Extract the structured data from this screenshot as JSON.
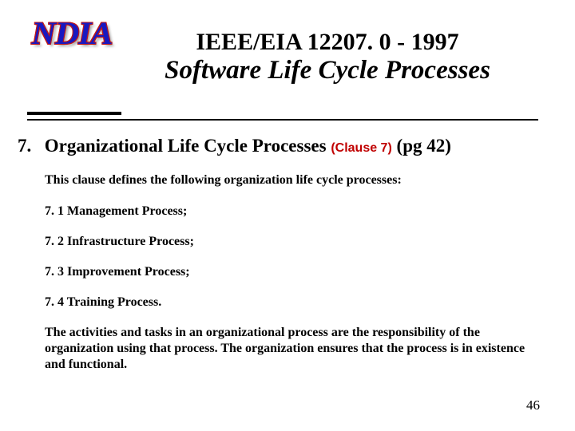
{
  "logo": {
    "text": "NDIA"
  },
  "title": {
    "line1": "IEEE/EIA 12207. 0 - 1997",
    "line2": "Software Life Cycle Processes"
  },
  "section": {
    "number": "7.",
    "heading": "Organizational Life Cycle Processes",
    "clause": "(Clause 7)",
    "pageref": "(pg 42)"
  },
  "body": {
    "intro": "This clause defines the following organization life cycle processes:",
    "items": [
      "7. 1  Management Process;",
      "7. 2  Infrastructure Process;",
      "7. 3  Improvement Process;",
      "7. 4  Training Process."
    ],
    "closing": "The activities and tasks in an organizational process are the responsibility of the organization using that process.  The organization ensures that the process is in existence and functional."
  },
  "pageNumber": "46",
  "colors": {
    "logo_text": "#1818c0",
    "logo_outline": "#c01818",
    "clause": "#c00000",
    "text": "#000000",
    "background": "#ffffff"
  },
  "typography": {
    "title_fontsize": 30,
    "subtitle_fontsize": 33,
    "heading_fontsize": 23,
    "body_fontsize": 16,
    "clause_fontsize": 16,
    "pagenum_fontsize": 17,
    "body_font": "Times New Roman",
    "clause_font": "Arial"
  }
}
